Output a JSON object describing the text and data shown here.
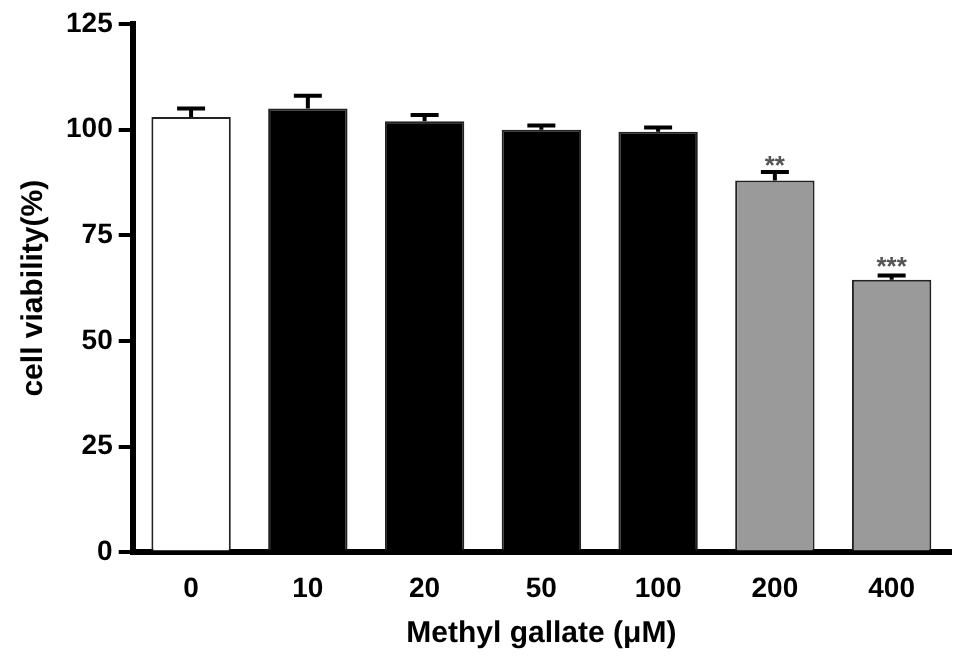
{
  "chart_data": {
    "type": "bar",
    "xlabel": "Methyl gallate (μM)",
    "ylabel": "cell viability(%)",
    "categories": [
      "0",
      "10",
      "20",
      "50",
      "100",
      "200",
      "400"
    ],
    "values": [
      103,
      105,
      102,
      100,
      99.5,
      88,
      64.5
    ],
    "errors": [
      2,
      3,
      1.5,
      1,
      1,
      2,
      1
    ],
    "colors": [
      "#ffffff",
      "#000000",
      "#000000",
      "#000000",
      "#000000",
      "#9a9a9a",
      "#9a9a9a"
    ],
    "ylim": [
      0,
      125
    ],
    "yticks": [
      0,
      25,
      50,
      75,
      100,
      125
    ],
    "grid": false,
    "annotations": [
      {
        "text": "**",
        "x": "200",
        "y": 91
      },
      {
        "text": "***",
        "x": "400",
        "y": 67
      }
    ]
  }
}
